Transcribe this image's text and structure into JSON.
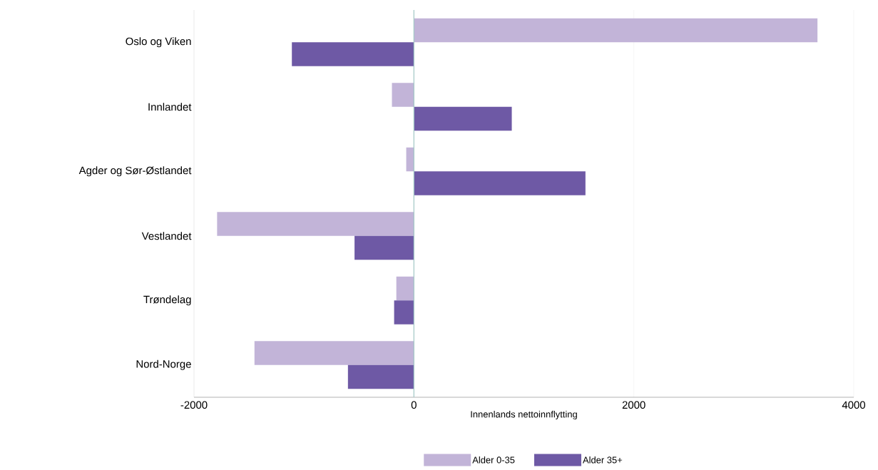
{
  "chart_data": {
    "type": "bar",
    "orientation": "horizontal",
    "xlabel": "Innenlands nettoinnflytting",
    "categories": [
      "Oslo og Viken",
      "Innlandet",
      "Agder og Sør-Østlandet",
      "Vestlandet",
      "Trøndelag",
      "Nord-Norge"
    ],
    "series": [
      {
        "name": "Alder 0-35",
        "color": "#c2b4d8",
        "values": [
          3670,
          -200,
          -70,
          -1790,
          -160,
          -1450
        ]
      },
      {
        "name": "Alder 35+",
        "color": "#6e59a5",
        "values": [
          -1110,
          890,
          1560,
          -540,
          -180,
          -600
        ]
      }
    ],
    "xlim": [
      -2000,
      4000
    ],
    "xticks": [
      -2000,
      0,
      2000,
      4000
    ],
    "grid": "x",
    "legend": "bottom",
    "ref_lines": [
      {
        "axis": "x",
        "value": 0,
        "color": "#a3c9c7"
      }
    ]
  }
}
